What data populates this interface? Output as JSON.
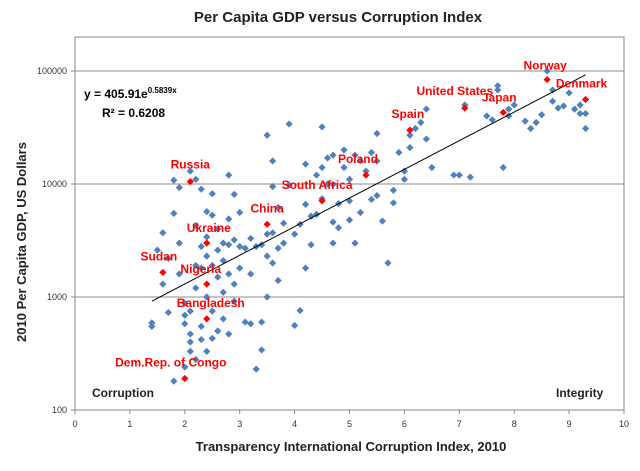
{
  "chart_data": {
    "type": "scatter",
    "title": "Per Capita GDP versus Corruption Index",
    "xlabel": "Transparency International  Corruption Index, 2010",
    "ylabel": "2010 Per Capita GDP, US Dollars",
    "x_ticks": [
      "0",
      "1",
      "2",
      "3",
      "4",
      "5",
      "6",
      "7",
      "8",
      "9",
      "10"
    ],
    "y_ticks": [
      "100",
      "1000",
      "10000",
      "100000"
    ],
    "xlim": [
      0,
      10
    ],
    "ylim": [
      100,
      200000
    ],
    "y_scale": "log",
    "grid": "horizontal",
    "legend": "none",
    "colors": {
      "points": "#4f81bd",
      "highlight": "#ff0000",
      "label": "#ff0000",
      "trendline": "#000000"
    },
    "equation_label": "y = 405.91e",
    "equation_exponent": "0.5839x",
    "r2_label": "R² = 0.6208",
    "corner_left": "Corruption",
    "corner_right": "Integrity",
    "trendline": {
      "a": 405.91,
      "b": 0.5839,
      "x_range": [
        1.4,
        9.3
      ]
    },
    "highlighted": [
      {
        "name": "Norway",
        "x": 8.6,
        "y": 84000
      },
      {
        "name": "Denmark",
        "x": 9.3,
        "y": 56000
      },
      {
        "name": "United States",
        "x": 7.1,
        "y": 47000
      },
      {
        "name": "Japan",
        "x": 7.8,
        "y": 43000
      },
      {
        "name": "Spain",
        "x": 6.1,
        "y": 30000
      },
      {
        "name": "Poland",
        "x": 5.3,
        "y": 12000
      },
      {
        "name": "Russia",
        "x": 2.1,
        "y": 10500
      },
      {
        "name": "South Africa",
        "x": 4.5,
        "y": 7100
      },
      {
        "name": "China",
        "x": 3.5,
        "y": 4400
      },
      {
        "name": "Ukraine",
        "x": 2.4,
        "y": 3000
      },
      {
        "name": "Sudan",
        "x": 1.6,
        "y": 1650
      },
      {
        "name": "Nigeria",
        "x": 2.4,
        "y": 1300
      },
      {
        "name": "Bangladesh",
        "x": 2.4,
        "y": 640
      },
      {
        "name": "Dem.Rep. of Congo",
        "x": 2.0,
        "y": 190
      }
    ],
    "points": [
      [
        1.4,
        590
      ],
      [
        1.4,
        550
      ],
      [
        1.5,
        2600
      ],
      [
        1.6,
        3700
      ],
      [
        1.6,
        1300
      ],
      [
        1.7,
        2200
      ],
      [
        1.7,
        730
      ],
      [
        1.8,
        180
      ],
      [
        1.8,
        5500
      ],
      [
        1.8,
        10800
      ],
      [
        1.9,
        9300
      ],
      [
        1.9,
        3000
      ],
      [
        1.9,
        1600
      ],
      [
        2.0,
        880
      ],
      [
        2.0,
        690
      ],
      [
        2.0,
        580
      ],
      [
        2.0,
        240
      ],
      [
        2.1,
        13000
      ],
      [
        2.1,
        400
      ],
      [
        2.1,
        330
      ],
      [
        2.1,
        470
      ],
      [
        2.1,
        750
      ],
      [
        2.2,
        11000
      ],
      [
        2.2,
        4300
      ],
      [
        2.2,
        1900
      ],
      [
        2.2,
        1200
      ],
      [
        2.2,
        280
      ],
      [
        2.3,
        9000
      ],
      [
        2.3,
        2800
      ],
      [
        2.3,
        1800
      ],
      [
        2.3,
        550
      ],
      [
        2.3,
        420
      ],
      [
        2.4,
        5700
      ],
      [
        2.4,
        3400
      ],
      [
        2.4,
        2300
      ],
      [
        2.4,
        1000
      ],
      [
        2.4,
        330
      ],
      [
        2.5,
        8200
      ],
      [
        2.5,
        5300
      ],
      [
        2.5,
        1900
      ],
      [
        2.5,
        750
      ],
      [
        2.5,
        430
      ],
      [
        2.6,
        4000
      ],
      [
        2.6,
        2600
      ],
      [
        2.6,
        1500
      ],
      [
        2.6,
        500
      ],
      [
        2.7,
        3000
      ],
      [
        2.7,
        2100
      ],
      [
        2.7,
        1100
      ],
      [
        2.7,
        640
      ],
      [
        2.8,
        12000
      ],
      [
        2.8,
        4900
      ],
      [
        2.8,
        2900
      ],
      [
        2.8,
        1600
      ],
      [
        2.8,
        470
      ],
      [
        2.9,
        8100
      ],
      [
        2.9,
        3200
      ],
      [
        2.9,
        1300
      ],
      [
        2.9,
        920
      ],
      [
        3.0,
        5600
      ],
      [
        3.0,
        2800
      ],
      [
        3.0,
        1800
      ],
      [
        3.1,
        2700
      ],
      [
        3.1,
        600
      ],
      [
        3.2,
        3300
      ],
      [
        3.2,
        1600
      ],
      [
        3.2,
        580
      ],
      [
        3.3,
        2800
      ],
      [
        3.3,
        230
      ],
      [
        3.4,
        2900
      ],
      [
        3.4,
        600
      ],
      [
        3.4,
        340
      ],
      [
        3.5,
        27000
      ],
      [
        3.5,
        3600
      ],
      [
        3.5,
        2300
      ],
      [
        3.5,
        1000
      ],
      [
        3.6,
        16000
      ],
      [
        3.6,
        9500
      ],
      [
        3.6,
        3700
      ],
      [
        3.6,
        2000
      ],
      [
        3.7,
        6200
      ],
      [
        3.7,
        2700
      ],
      [
        3.7,
        1400
      ],
      [
        3.8,
        4500
      ],
      [
        3.8,
        3000
      ],
      [
        3.9,
        34000
      ],
      [
        3.9,
        9800
      ],
      [
        4.0,
        3600
      ],
      [
        4.0,
        560
      ],
      [
        4.1,
        4400
      ],
      [
        4.1,
        760
      ],
      [
        4.2,
        15000
      ],
      [
        4.2,
        6600
      ],
      [
        4.2,
        1800
      ],
      [
        4.3,
        5200
      ],
      [
        4.3,
        2900
      ],
      [
        4.4,
        12000
      ],
      [
        4.4,
        5400
      ],
      [
        4.5,
        32000
      ],
      [
        4.5,
        14000
      ],
      [
        4.5,
        7400
      ],
      [
        4.6,
        17000
      ],
      [
        4.6,
        10000
      ],
      [
        4.7,
        18000
      ],
      [
        4.7,
        9900
      ],
      [
        4.7,
        4600
      ],
      [
        4.7,
        3000
      ],
      [
        4.8,
        6700
      ],
      [
        4.8,
        4100
      ],
      [
        4.9,
        20000
      ],
      [
        4.9,
        14000
      ],
      [
        5.0,
        11000
      ],
      [
        5.0,
        7100
      ],
      [
        5.0,
        4800
      ],
      [
        5.1,
        18000
      ],
      [
        5.1,
        3000
      ],
      [
        5.2,
        16000
      ],
      [
        5.2,
        5600
      ],
      [
        5.3,
        13000
      ],
      [
        5.4,
        19000
      ],
      [
        5.4,
        7300
      ],
      [
        5.5,
        28000
      ],
      [
        5.5,
        16000
      ],
      [
        5.5,
        7900
      ],
      [
        5.6,
        4700
      ],
      [
        5.7,
        2000
      ],
      [
        5.8,
        8800
      ],
      [
        5.8,
        6800
      ],
      [
        5.9,
        19000
      ],
      [
        6.0,
        13000
      ],
      [
        6.0,
        11000
      ],
      [
        6.1,
        27000
      ],
      [
        6.1,
        21000
      ],
      [
        6.2,
        31000
      ],
      [
        6.3,
        35000
      ],
      [
        6.4,
        46000
      ],
      [
        6.4,
        25000
      ],
      [
        6.5,
        14000
      ],
      [
        6.9,
        12000
      ],
      [
        7.0,
        12000
      ],
      [
        7.1,
        50000
      ],
      [
        7.2,
        11500
      ],
      [
        7.5,
        40000
      ],
      [
        7.6,
        37000
      ],
      [
        7.7,
        74000
      ],
      [
        7.7,
        68000
      ],
      [
        7.8,
        14000
      ],
      [
        7.9,
        40000
      ],
      [
        7.9,
        46000
      ],
      [
        8.0,
        50000
      ],
      [
        8.2,
        36000
      ],
      [
        8.3,
        31000
      ],
      [
        8.4,
        35000
      ],
      [
        8.5,
        41000
      ],
      [
        8.6,
        100000
      ],
      [
        8.7,
        54000
      ],
      [
        8.7,
        68000
      ],
      [
        8.8,
        47000
      ],
      [
        8.9,
        49000
      ],
      [
        9.0,
        64000
      ],
      [
        9.1,
        46000
      ],
      [
        9.2,
        42000
      ],
      [
        9.2,
        50000
      ],
      [
        9.3,
        42000
      ],
      [
        9.3,
        31000
      ]
    ]
  }
}
